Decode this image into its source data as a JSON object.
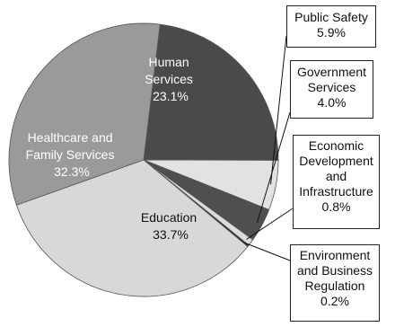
{
  "chart_data": {
    "type": "pie",
    "slices": [
      {
        "label": "Human Services",
        "value": 23.1,
        "value_label": "23.1%",
        "color": "#4a4a4a"
      },
      {
        "label": "Public Safety",
        "value": 5.9,
        "value_label": "5.9%",
        "color": "#e2e2e2"
      },
      {
        "label": "Government Services",
        "value": 4.0,
        "value_label": "4.0%",
        "color": "#4f4f4f"
      },
      {
        "label": "Economic Development and Infrastructure",
        "value": 0.8,
        "value_label": "0.8%",
        "color": "#dcdcdc"
      },
      {
        "label": "Environment and Business Regulation",
        "value": 0.2,
        "value_label": "0.2%",
        "color": "#2a2a2a"
      },
      {
        "label": "Education",
        "value": 33.7,
        "value_label": "33.7%",
        "color": "#d8d8d8"
      },
      {
        "label": "Healthcare and Family Services",
        "value": 32.3,
        "value_label": "32.3%",
        "color": "#9a9a9a"
      }
    ],
    "labels": {
      "human_services": [
        "Human",
        "Services",
        "23.1%"
      ],
      "education": [
        "Education",
        "33.7%"
      ],
      "healthcare": [
        "Healthcare and",
        "Family Services",
        "32.3%"
      ],
      "public_safety": [
        "Public Safety",
        "5.9%"
      ],
      "government": [
        "Government",
        "Services",
        "4.0%"
      ],
      "economic": [
        "Economic",
        "Development",
        "and",
        "Infrastructure",
        "0.8%"
      ],
      "environment": [
        "Environment",
        "and Business",
        "Regulation",
        "0.2%"
      ]
    }
  }
}
